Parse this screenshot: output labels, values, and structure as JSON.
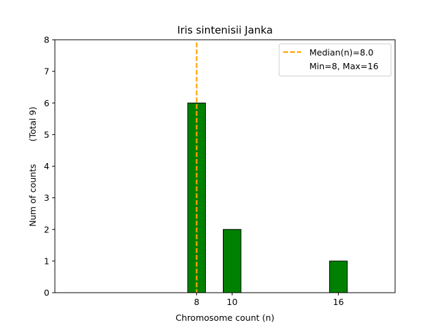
{
  "chart_data": {
    "type": "bar",
    "title": "Iris sintenisii Janka",
    "xlabel": "Chromosome count (n)",
    "ylabel": "Num of counts",
    "ylabel_note": "(Total 9)",
    "x": [
      8,
      10,
      16
    ],
    "values": [
      6,
      2,
      1
    ],
    "bar_color": "#008000",
    "xlim": [
      0,
      19.2
    ],
    "ylim": [
      0,
      8
    ],
    "xticks": [
      8,
      10,
      16
    ],
    "yticks": [
      0,
      1,
      2,
      3,
      4,
      5,
      6,
      7,
      8
    ],
    "median": 8.0,
    "median_color": "#FFA500",
    "legend": {
      "position": "top-right",
      "entries": [
        "Median(n)=8.0",
        "Min=8, Max=16"
      ]
    },
    "grid": false
  }
}
